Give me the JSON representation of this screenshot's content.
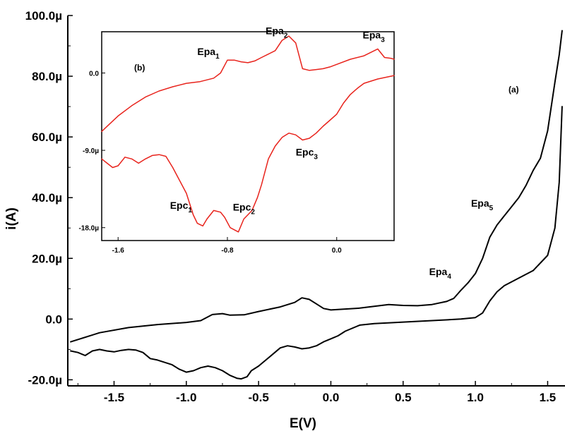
{
  "chart_data": [
    {
      "type": "line",
      "panel_label": "(a)",
      "xlabel": "E(V)",
      "ylabel": "i(A)",
      "xlim": [
        -1.82,
        1.62
      ],
      "ylim": [
        -22,
        100
      ],
      "y_unit": "µA",
      "x_ticks": [
        -1.5,
        -1.0,
        -0.5,
        0.0,
        0.5,
        1.0,
        1.5
      ],
      "x_tick_labels": [
        "-1.5",
        "-1.0",
        "-0.5",
        "0.0",
        "0.5",
        "1.0",
        "1.5"
      ],
      "y_ticks": [
        -20,
        0,
        20,
        40,
        60,
        80,
        100
      ],
      "y_tick_labels": [
        "-20.0µ",
        "0.0",
        "20.0µ",
        "40.0µ",
        "60.0µ",
        "80.0µ",
        "100.0µ"
      ],
      "series": [
        {
          "color": "#000000",
          "x": [
            -1.8,
            -1.6,
            -1.4,
            -1.2,
            -1.0,
            -0.9,
            -0.82,
            -0.75,
            -0.7,
            -0.6,
            -0.5,
            -0.35,
            -0.25,
            -0.2,
            -0.15,
            -0.1,
            -0.05,
            0.0,
            0.2,
            0.35,
            0.4,
            0.5,
            0.6,
            0.7,
            0.8,
            0.85,
            0.9,
            0.95,
            1.0,
            1.05,
            1.1,
            1.15,
            1.2,
            1.25,
            1.3,
            1.35,
            1.4,
            1.45,
            1.5,
            1.55,
            1.58,
            1.6
          ],
          "y": [
            -7.5,
            -4.5,
            -2.8,
            -1.8,
            -1.1,
            -0.5,
            1.5,
            1.8,
            1.3,
            1.4,
            2.5,
            4.0,
            5.5,
            7.0,
            6.5,
            5.0,
            3.5,
            3.0,
            3.6,
            4.5,
            4.8,
            4.5,
            4.4,
            4.8,
            5.8,
            6.8,
            9.5,
            12.0,
            15.0,
            20.0,
            27.0,
            31.0,
            34.0,
            37.0,
            40.0,
            44.0,
            49.0,
            53.0,
            62.0,
            78.0,
            87.0,
            95.0
          ]
        },
        {
          "color": "#000000",
          "x": [
            -1.8,
            -1.75,
            -1.7,
            -1.65,
            -1.6,
            -1.55,
            -1.5,
            -1.45,
            -1.4,
            -1.35,
            -1.3,
            -1.25,
            -1.2,
            -1.1,
            -1.05,
            -1.0,
            -0.95,
            -0.9,
            -0.85,
            -0.8,
            -0.75,
            -0.7,
            -0.65,
            -0.62,
            -0.58,
            -0.55,
            -0.5,
            -0.45,
            -0.4,
            -0.35,
            -0.3,
            -0.25,
            -0.2,
            -0.15,
            -0.1,
            -0.05,
            0.0,
            0.05,
            0.1,
            0.2,
            0.3,
            0.5,
            0.7,
            0.9,
            1.0,
            1.05,
            1.1,
            1.15,
            1.2,
            1.3,
            1.4,
            1.5,
            1.55,
            1.58,
            1.6
          ],
          "y": [
            -10.5,
            -11.0,
            -12.0,
            -10.5,
            -10.0,
            -10.5,
            -10.8,
            -10.3,
            -10.0,
            -10.2,
            -11.0,
            -13.0,
            -13.5,
            -15.0,
            -16.5,
            -17.5,
            -17.0,
            -16.0,
            -15.5,
            -16.0,
            -17.0,
            -18.5,
            -19.5,
            -19.7,
            -19.0,
            -17.0,
            -15.5,
            -13.5,
            -11.5,
            -9.5,
            -8.8,
            -9.2,
            -9.8,
            -9.5,
            -8.8,
            -7.5,
            -6.5,
            -5.5,
            -4.0,
            -2.0,
            -1.5,
            -1.0,
            -0.5,
            0.0,
            0.5,
            2.0,
            6.0,
            9.0,
            11.0,
            13.5,
            16.0,
            21.0,
            30.0,
            45.0,
            70.0
          ]
        }
      ],
      "annotations": [
        {
          "base": "Epa",
          "sub": "4",
          "x": 0.68,
          "y": 14.5
        },
        {
          "base": "Epa",
          "sub": "5",
          "x": 0.97,
          "y": 37.0
        }
      ]
    },
    {
      "type": "line",
      "panel_label": "(b)",
      "xlim": [
        -1.72,
        0.42
      ],
      "ylim": [
        -19.5,
        4.8
      ],
      "y_unit": "µA",
      "x_ticks": [
        -1.6,
        -0.8,
        0.0
      ],
      "x_tick_labels": [
        "-1.6",
        "-0.8",
        "0.0"
      ],
      "y_ticks": [
        -18,
        -9,
        0
      ],
      "y_tick_labels": [
        "-18.0µ",
        "-9.0µ",
        "0.0"
      ],
      "series": [
        {
          "color": "#e8231c",
          "x": [
            -1.72,
            -1.6,
            -1.5,
            -1.4,
            -1.3,
            -1.2,
            -1.1,
            -1.0,
            -0.9,
            -0.85,
            -0.8,
            -0.75,
            -0.7,
            -0.65,
            -0.6,
            -0.55,
            -0.5,
            -0.45,
            -0.4,
            -0.35,
            -0.3,
            -0.25,
            -0.2,
            -0.15,
            -0.1,
            -0.05,
            0.0,
            0.1,
            0.2,
            0.3,
            0.35,
            0.4,
            0.42
          ],
          "y": [
            -6.8,
            -5.0,
            -3.8,
            -2.8,
            -2.1,
            -1.6,
            -1.2,
            -1.0,
            -0.6,
            0.0,
            1.5,
            1.5,
            1.3,
            1.2,
            1.4,
            1.8,
            2.2,
            2.6,
            3.8,
            4.3,
            3.5,
            0.5,
            0.3,
            0.4,
            0.5,
            0.7,
            1.0,
            1.6,
            2.0,
            2.8,
            1.8,
            1.7,
            1.6
          ]
        },
        {
          "color": "#e8231c",
          "x": [
            -1.72,
            -1.68,
            -1.64,
            -1.6,
            -1.55,
            -1.5,
            -1.45,
            -1.4,
            -1.35,
            -1.3,
            -1.25,
            -1.2,
            -1.1,
            -1.05,
            -1.02,
            -0.98,
            -0.95,
            -0.9,
            -0.85,
            -0.82,
            -0.78,
            -0.72,
            -0.68,
            -0.65,
            -0.62,
            -0.58,
            -0.55,
            -0.5,
            -0.45,
            -0.4,
            -0.35,
            -0.3,
            -0.25,
            -0.2,
            -0.15,
            -0.1,
            -0.05,
            0.0,
            0.05,
            0.1,
            0.15,
            0.2,
            0.3,
            0.42
          ],
          "y": [
            -10.0,
            -10.5,
            -11.0,
            -10.8,
            -9.8,
            -10.0,
            -10.5,
            -10.0,
            -9.6,
            -9.5,
            -9.7,
            -11.0,
            -14.0,
            -16.5,
            -17.5,
            -17.8,
            -17.0,
            -16.0,
            -16.2,
            -16.8,
            -18.0,
            -18.5,
            -17.0,
            -16.5,
            -16.0,
            -14.5,
            -13.0,
            -10.0,
            -8.5,
            -7.5,
            -7.0,
            -7.2,
            -7.8,
            -7.6,
            -7.0,
            -6.2,
            -5.5,
            -4.8,
            -3.5,
            -2.5,
            -1.8,
            -1.2,
            -0.7,
            -0.3
          ]
        }
      ],
      "annotations": [
        {
          "base": "Epa",
          "sub": "1",
          "x": -1.02,
          "y": 2.1
        },
        {
          "base": "Epa",
          "sub": "2",
          "x": -0.52,
          "y": 4.5
        },
        {
          "base": "Epa",
          "sub": "3",
          "x": 0.19,
          "y": 4.0
        },
        {
          "base": "Epc",
          "sub": "1",
          "x": -1.22,
          "y": -15.8
        },
        {
          "base": "Epc",
          "sub": "2",
          "x": -0.76,
          "y": -16.0
        },
        {
          "base": "Epc",
          "sub": "3",
          "x": -0.3,
          "y": -9.6
        }
      ]
    }
  ]
}
